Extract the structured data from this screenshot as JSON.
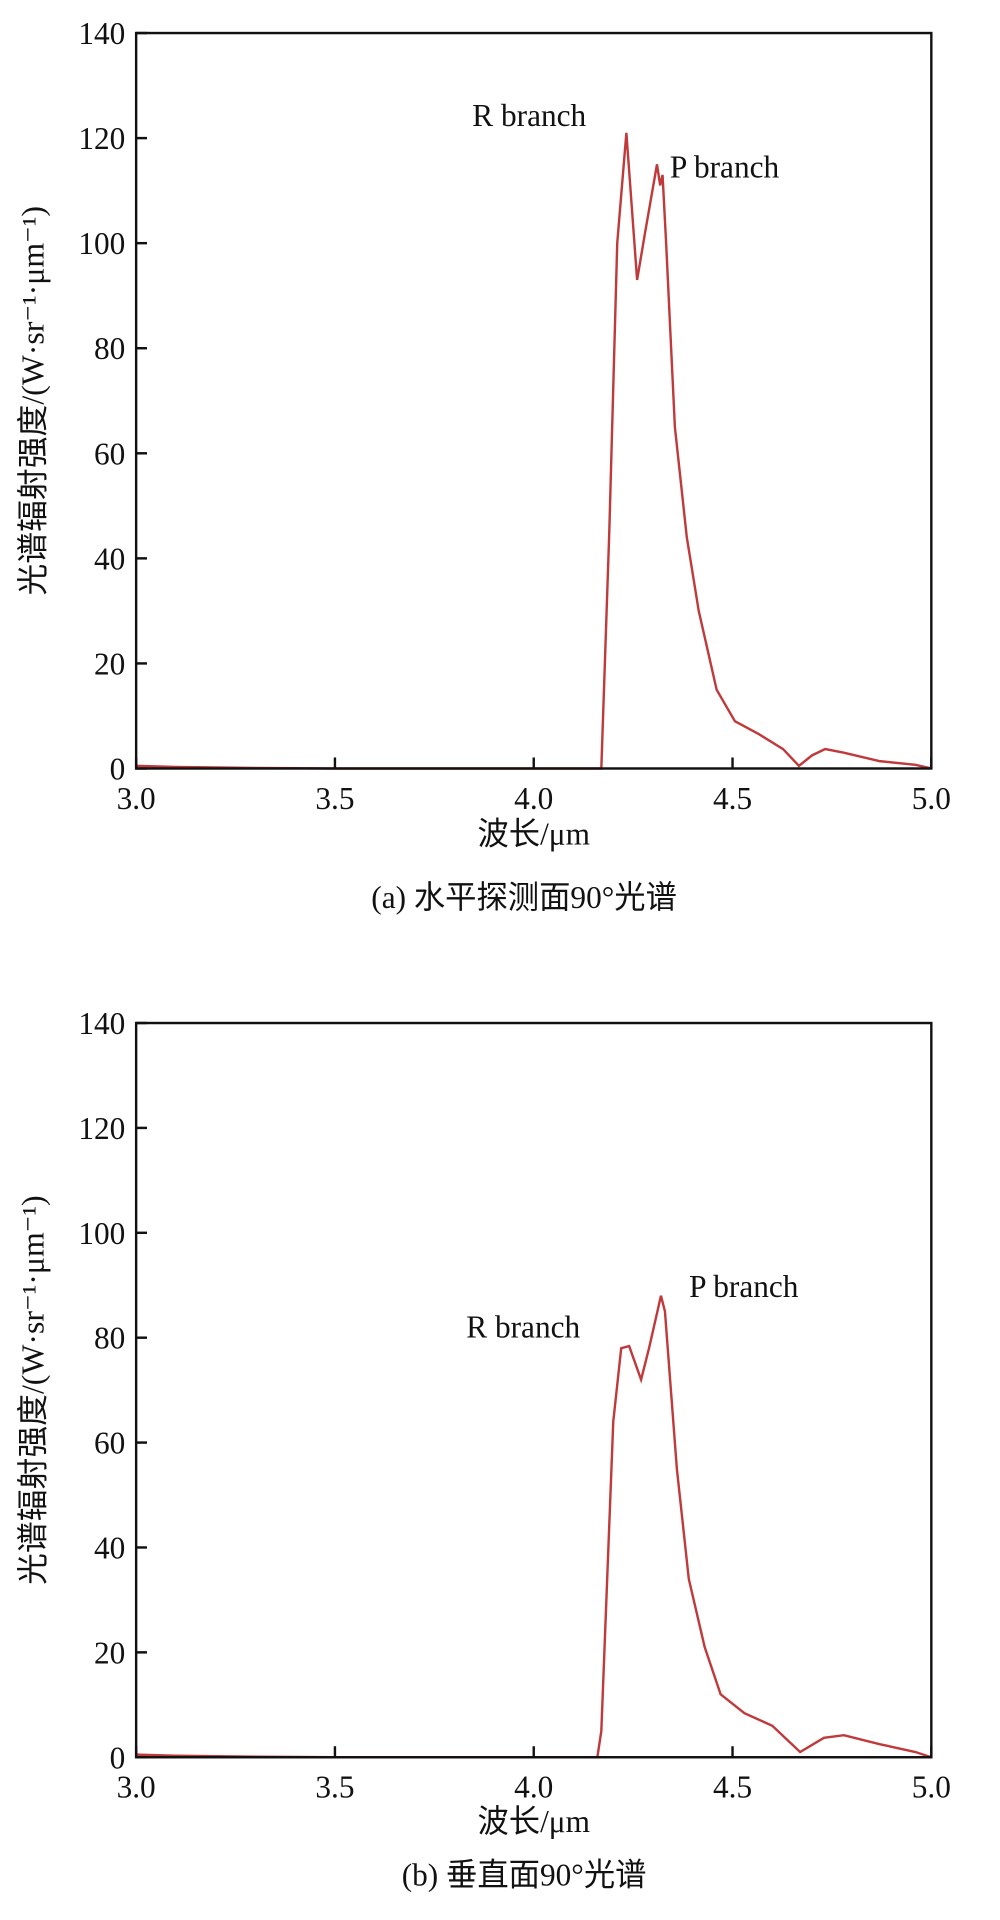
{
  "chart_data": [
    {
      "type": "line",
      "caption": "(a) 水平探测面90°光谱",
      "xlabel": "波长/μm",
      "ylabel": "光谱辐射强度/(W·sr⁻¹·μm⁻¹)",
      "x": [
        3.0,
        3.1,
        3.2,
        3.3,
        3.5,
        3.8,
        4.0,
        4.16,
        4.17,
        4.19,
        4.21,
        4.233,
        4.26,
        4.28,
        4.31,
        4.318,
        4.324,
        4.333,
        4.355,
        4.385,
        4.415,
        4.46,
        4.506,
        4.567,
        4.627,
        4.667,
        4.7,
        4.733,
        4.78,
        4.87,
        4.96,
        5.0
      ],
      "values": [
        0.5,
        0.3,
        0.2,
        0.1,
        0,
        0,
        0,
        0,
        0,
        45,
        100,
        121,
        93,
        102,
        115,
        111,
        113,
        100,
        65,
        44,
        30,
        15,
        9,
        6.5,
        3.7,
        0.5,
        2.5,
        3.7,
        3,
        1.4,
        0.7,
        0
      ],
      "color": "#c0393b",
      "xlim": [
        3.0,
        5.0
      ],
      "ylim": [
        0,
        140
      ],
      "xticks": [
        {
          "value": 3.0,
          "label": "3.0"
        },
        3.5,
        {
          "value": 4.0,
          "label": "4.0"
        },
        4.5,
        {
          "value": 5.0,
          "label": "5.0"
        }
      ],
      "yticks": [
        0,
        20,
        40,
        60,
        80,
        100,
        120,
        140
      ],
      "annotations": [
        "R branch",
        "P branch"
      ]
    },
    {
      "type": "line",
      "caption": "(b) 垂直面90°光谱",
      "xlabel": "波长/μm",
      "ylabel": "光谱辐射强度/(W·sr⁻¹·μm⁻¹)",
      "x": [
        3.0,
        3.1,
        3.2,
        3.3,
        3.5,
        3.8,
        4.0,
        4.16,
        4.17,
        4.2,
        4.22,
        4.24,
        4.27,
        4.29,
        4.32,
        4.33,
        4.36,
        4.39,
        4.43,
        4.47,
        4.53,
        4.6,
        4.67,
        4.73,
        4.78,
        4.87,
        4.96,
        5.0
      ],
      "values": [
        0.5,
        0.3,
        0.2,
        0.1,
        0,
        0,
        0,
        0,
        5,
        64,
        78,
        78.4,
        72,
        78,
        88,
        85,
        55,
        34,
        21,
        12,
        8.4,
        6,
        1,
        3.7,
        4.2,
        2.5,
        1,
        0
      ],
      "color": "#c0393b",
      "xlim": [
        3.0,
        5.0
      ],
      "ylim": [
        0,
        140
      ],
      "xticks": [
        {
          "value": 3.0,
          "label": "3.0"
        },
        3.5,
        {
          "value": 4.0,
          "label": "4.0"
        },
        4.5,
        {
          "value": 5.0,
          "label": "5.0"
        }
      ],
      "yticks": [
        0,
        20,
        40,
        60,
        80,
        100,
        120,
        140
      ],
      "annotations": [
        "R branch",
        "P branch"
      ]
    }
  ]
}
